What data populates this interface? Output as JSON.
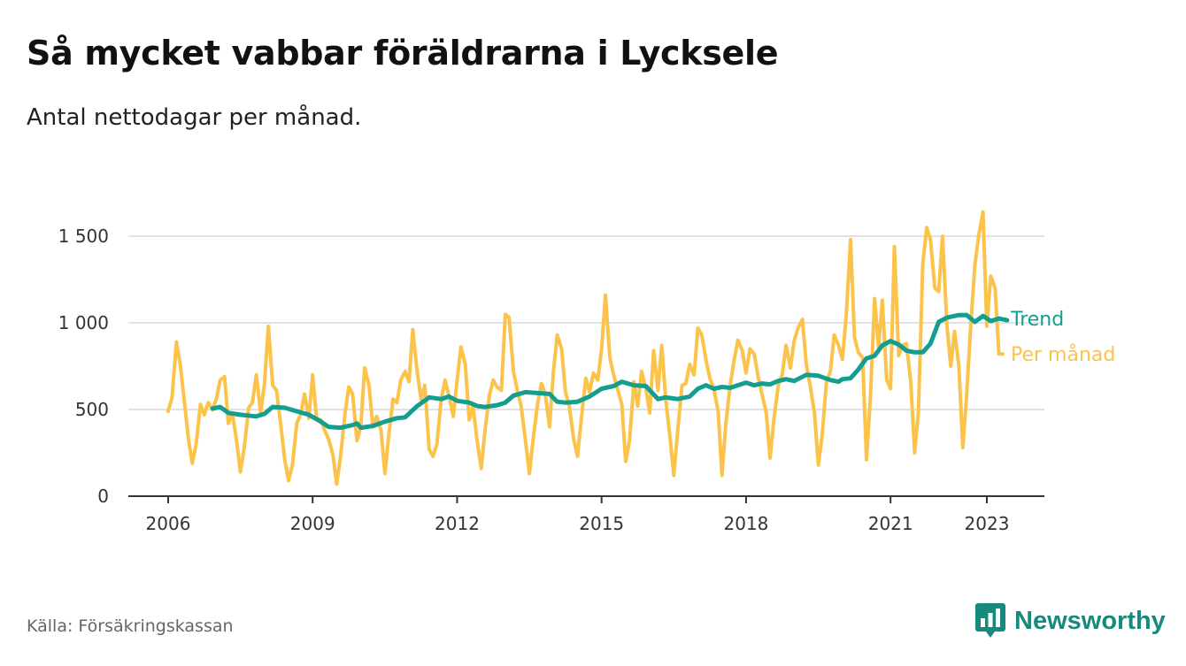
{
  "title": "Så mycket vabbar föräldrarna i Lycksele",
  "subtitle": "Antal nettodagar per månad.",
  "source": "Källa: Försäkringskassan",
  "brand": {
    "name": "Newsworthy",
    "icon": "chart-bubble-icon"
  },
  "colors": {
    "trend": "#159d8f",
    "monthly": "#fcc34b",
    "grid": "#d9d9d9",
    "axis": "#333333",
    "brand": "#17897d"
  },
  "chart_data": {
    "type": "line",
    "x_unit": "month (decimal year)",
    "ylim": [
      0,
      1500
    ],
    "xlim": [
      2005.2,
      2024.2
    ],
    "y_ticks": [
      {
        "value": 0,
        "label": "0"
      },
      {
        "value": 500,
        "label": "500"
      },
      {
        "value": 1000,
        "label": "1 000"
      },
      {
        "value": 1500,
        "label": "1 500"
      }
    ],
    "x_ticks": [
      {
        "value": 2006,
        "label": "2006"
      },
      {
        "value": 2009,
        "label": "2009"
      },
      {
        "value": 2012,
        "label": "2012"
      },
      {
        "value": 2015,
        "label": "2015"
      },
      {
        "value": 2018,
        "label": "2018"
      },
      {
        "value": 2021,
        "label": "2021"
      },
      {
        "value": 2023,
        "label": "2023"
      }
    ],
    "grid": true,
    "legend": "inline labels at line ends (right)",
    "series": [
      {
        "name": "Per månad",
        "color": "#fcc34b",
        "points": [
          [
            2006.0,
            490
          ],
          [
            2006.08,
            570
          ],
          [
            2006.17,
            890
          ],
          [
            2006.25,
            760
          ],
          [
            2006.33,
            560
          ],
          [
            2006.42,
            330
          ],
          [
            2006.5,
            190
          ],
          [
            2006.58,
            300
          ],
          [
            2006.67,
            530
          ],
          [
            2006.75,
            470
          ],
          [
            2006.83,
            540
          ],
          [
            2006.92,
            500
          ],
          [
            2007.0,
            560
          ],
          [
            2007.08,
            670
          ],
          [
            2007.17,
            690
          ],
          [
            2007.25,
            420
          ],
          [
            2007.33,
            480
          ],
          [
            2007.42,
            320
          ],
          [
            2007.5,
            140
          ],
          [
            2007.58,
            280
          ],
          [
            2007.67,
            510
          ],
          [
            2007.75,
            540
          ],
          [
            2007.83,
            700
          ],
          [
            2007.92,
            480
          ],
          [
            2008.0,
            650
          ],
          [
            2008.08,
            980
          ],
          [
            2008.17,
            640
          ],
          [
            2008.25,
            610
          ],
          [
            2008.33,
            430
          ],
          [
            2008.42,
            210
          ],
          [
            2008.5,
            90
          ],
          [
            2008.58,
            180
          ],
          [
            2008.67,
            420
          ],
          [
            2008.75,
            470
          ],
          [
            2008.83,
            590
          ],
          [
            2008.92,
            450
          ],
          [
            2009.0,
            700
          ],
          [
            2009.08,
            450
          ],
          [
            2009.17,
            440
          ],
          [
            2009.25,
            380
          ],
          [
            2009.33,
            330
          ],
          [
            2009.42,
            240
          ],
          [
            2009.5,
            70
          ],
          [
            2009.58,
            230
          ],
          [
            2009.67,
            470
          ],
          [
            2009.75,
            630
          ],
          [
            2009.83,
            590
          ],
          [
            2009.92,
            320
          ],
          [
            2010.0,
            400
          ],
          [
            2010.08,
            740
          ],
          [
            2010.17,
            640
          ],
          [
            2010.25,
            400
          ],
          [
            2010.33,
            460
          ],
          [
            2010.42,
            380
          ],
          [
            2010.5,
            130
          ],
          [
            2010.58,
            350
          ],
          [
            2010.67,
            560
          ],
          [
            2010.75,
            540
          ],
          [
            2010.83,
            670
          ],
          [
            2010.92,
            720
          ],
          [
            2011.0,
            660
          ],
          [
            2011.08,
            960
          ],
          [
            2011.17,
            720
          ],
          [
            2011.25,
            560
          ],
          [
            2011.33,
            640
          ],
          [
            2011.42,
            270
          ],
          [
            2011.5,
            230
          ],
          [
            2011.58,
            300
          ],
          [
            2011.67,
            560
          ],
          [
            2011.75,
            670
          ],
          [
            2011.83,
            580
          ],
          [
            2011.92,
            460
          ],
          [
            2012.0,
            670
          ],
          [
            2012.08,
            860
          ],
          [
            2012.17,
            760
          ],
          [
            2012.25,
            440
          ],
          [
            2012.33,
            520
          ],
          [
            2012.42,
            310
          ],
          [
            2012.5,
            160
          ],
          [
            2012.58,
            380
          ],
          [
            2012.67,
            580
          ],
          [
            2012.75,
            670
          ],
          [
            2012.83,
            630
          ],
          [
            2012.92,
            610
          ],
          [
            2013.0,
            1050
          ],
          [
            2013.08,
            1030
          ],
          [
            2013.17,
            720
          ],
          [
            2013.25,
            610
          ],
          [
            2013.33,
            520
          ],
          [
            2013.42,
            320
          ],
          [
            2013.5,
            130
          ],
          [
            2013.58,
            330
          ],
          [
            2013.67,
            530
          ],
          [
            2013.75,
            650
          ],
          [
            2013.83,
            590
          ],
          [
            2013.92,
            400
          ],
          [
            2014.0,
            720
          ],
          [
            2014.08,
            930
          ],
          [
            2014.17,
            850
          ],
          [
            2014.25,
            600
          ],
          [
            2014.33,
            520
          ],
          [
            2014.42,
            330
          ],
          [
            2014.5,
            230
          ],
          [
            2014.58,
            450
          ],
          [
            2014.67,
            680
          ],
          [
            2014.75,
            600
          ],
          [
            2014.83,
            710
          ],
          [
            2014.92,
            670
          ],
          [
            2015.0,
            850
          ],
          [
            2015.08,
            1160
          ],
          [
            2015.17,
            800
          ],
          [
            2015.25,
            700
          ],
          [
            2015.33,
            620
          ],
          [
            2015.42,
            530
          ],
          [
            2015.5,
            200
          ],
          [
            2015.58,
            320
          ],
          [
            2015.67,
            660
          ],
          [
            2015.75,
            520
          ],
          [
            2015.83,
            720
          ],
          [
            2015.92,
            620
          ],
          [
            2016.0,
            480
          ],
          [
            2016.08,
            840
          ],
          [
            2016.17,
            610
          ],
          [
            2016.25,
            870
          ],
          [
            2016.33,
            560
          ],
          [
            2016.42,
            340
          ],
          [
            2016.5,
            120
          ],
          [
            2016.58,
            380
          ],
          [
            2016.67,
            640
          ],
          [
            2016.75,
            650
          ],
          [
            2016.83,
            760
          ],
          [
            2016.92,
            700
          ],
          [
            2017.0,
            970
          ],
          [
            2017.08,
            930
          ],
          [
            2017.17,
            780
          ],
          [
            2017.25,
            680
          ],
          [
            2017.33,
            620
          ],
          [
            2017.42,
            490
          ],
          [
            2017.5,
            120
          ],
          [
            2017.58,
            420
          ],
          [
            2017.67,
            640
          ],
          [
            2017.75,
            780
          ],
          [
            2017.83,
            900
          ],
          [
            2017.92,
            840
          ],
          [
            2018.0,
            710
          ],
          [
            2018.08,
            850
          ],
          [
            2018.17,
            820
          ],
          [
            2018.25,
            690
          ],
          [
            2018.33,
            590
          ],
          [
            2018.42,
            480
          ],
          [
            2018.5,
            220
          ],
          [
            2018.58,
            450
          ],
          [
            2018.67,
            640
          ],
          [
            2018.75,
            700
          ],
          [
            2018.83,
            870
          ],
          [
            2018.92,
            740
          ],
          [
            2019.0,
            900
          ],
          [
            2019.08,
            970
          ],
          [
            2019.17,
            1020
          ],
          [
            2019.25,
            760
          ],
          [
            2019.33,
            640
          ],
          [
            2019.42,
            480
          ],
          [
            2019.5,
            180
          ],
          [
            2019.58,
            350
          ],
          [
            2019.67,
            660
          ],
          [
            2019.75,
            720
          ],
          [
            2019.83,
            930
          ],
          [
            2019.92,
            870
          ],
          [
            2020.0,
            790
          ],
          [
            2020.08,
            1040
          ],
          [
            2020.17,
            1480
          ],
          [
            2020.25,
            920
          ],
          [
            2020.33,
            830
          ],
          [
            2020.42,
            800
          ],
          [
            2020.5,
            210
          ],
          [
            2020.58,
            560
          ],
          [
            2020.67,
            1140
          ],
          [
            2020.75,
            860
          ],
          [
            2020.83,
            1130
          ],
          [
            2020.92,
            670
          ],
          [
            2021.0,
            620
          ],
          [
            2021.08,
            1440
          ],
          [
            2021.17,
            810
          ],
          [
            2021.25,
            870
          ],
          [
            2021.33,
            880
          ],
          [
            2021.42,
            660
          ],
          [
            2021.5,
            250
          ],
          [
            2021.58,
            490
          ],
          [
            2021.67,
            1340
          ],
          [
            2021.75,
            1550
          ],
          [
            2021.83,
            1480
          ],
          [
            2021.92,
            1200
          ],
          [
            2022.0,
            1180
          ],
          [
            2022.08,
            1500
          ],
          [
            2022.17,
            990
          ],
          [
            2022.25,
            750
          ],
          [
            2022.33,
            950
          ],
          [
            2022.42,
            750
          ],
          [
            2022.5,
            280
          ],
          [
            2022.58,
            580
          ],
          [
            2022.67,
            1000
          ],
          [
            2022.75,
            1330
          ],
          [
            2022.83,
            1500
          ],
          [
            2022.92,
            1640
          ],
          [
            2023.0,
            980
          ],
          [
            2023.08,
            1270
          ],
          [
            2023.17,
            1200
          ],
          [
            2023.25,
            820
          ],
          [
            2023.33,
            820
          ]
        ]
      },
      {
        "name": "Trend",
        "color": "#159d8f",
        "points": [
          [
            2006.92,
            505
          ],
          [
            2007.08,
            515
          ],
          [
            2007.25,
            480
          ],
          [
            2007.5,
            470
          ],
          [
            2007.83,
            460
          ],
          [
            2008.0,
            475
          ],
          [
            2008.17,
            515
          ],
          [
            2008.42,
            510
          ],
          [
            2008.67,
            490
          ],
          [
            2008.92,
            470
          ],
          [
            2009.17,
            430
          ],
          [
            2009.33,
            400
          ],
          [
            2009.58,
            395
          ],
          [
            2009.83,
            410
          ],
          [
            2009.92,
            420
          ],
          [
            2010.0,
            395
          ],
          [
            2010.25,
            405
          ],
          [
            2010.5,
            430
          ],
          [
            2010.75,
            450
          ],
          [
            2010.92,
            455
          ],
          [
            2011.17,
            520
          ],
          [
            2011.42,
            570
          ],
          [
            2011.67,
            560
          ],
          [
            2011.83,
            575
          ],
          [
            2012.0,
            550
          ],
          [
            2012.25,
            540
          ],
          [
            2012.42,
            520
          ],
          [
            2012.58,
            515
          ],
          [
            2012.83,
            525
          ],
          [
            2013.0,
            540
          ],
          [
            2013.17,
            580
          ],
          [
            2013.42,
            600
          ],
          [
            2013.67,
            595
          ],
          [
            2013.92,
            590
          ],
          [
            2014.08,
            545
          ],
          [
            2014.25,
            540
          ],
          [
            2014.5,
            545
          ],
          [
            2014.75,
            575
          ],
          [
            2015.0,
            620
          ],
          [
            2015.25,
            635
          ],
          [
            2015.42,
            660
          ],
          [
            2015.67,
            640
          ],
          [
            2015.92,
            635
          ],
          [
            2016.17,
            560
          ],
          [
            2016.33,
            570
          ],
          [
            2016.58,
            560
          ],
          [
            2016.83,
            575
          ],
          [
            2017.0,
            620
          ],
          [
            2017.17,
            640
          ],
          [
            2017.33,
            620
          ],
          [
            2017.5,
            630
          ],
          [
            2017.67,
            625
          ],
          [
            2017.83,
            640
          ],
          [
            2018.0,
            655
          ],
          [
            2018.17,
            640
          ],
          [
            2018.33,
            650
          ],
          [
            2018.5,
            645
          ],
          [
            2018.67,
            665
          ],
          [
            2018.83,
            675
          ],
          [
            2019.0,
            665
          ],
          [
            2019.25,
            700
          ],
          [
            2019.5,
            695
          ],
          [
            2019.75,
            670
          ],
          [
            2019.92,
            660
          ],
          [
            2020.0,
            675
          ],
          [
            2020.17,
            680
          ],
          [
            2020.33,
            730
          ],
          [
            2020.5,
            795
          ],
          [
            2020.67,
            810
          ],
          [
            2020.83,
            870
          ],
          [
            2021.0,
            895
          ],
          [
            2021.08,
            885
          ],
          [
            2021.17,
            875
          ],
          [
            2021.33,
            840
          ],
          [
            2021.5,
            830
          ],
          [
            2021.67,
            830
          ],
          [
            2021.83,
            880
          ],
          [
            2022.0,
            1005
          ],
          [
            2022.17,
            1030
          ],
          [
            2022.42,
            1045
          ],
          [
            2022.58,
            1045
          ],
          [
            2022.75,
            1005
          ],
          [
            2022.92,
            1040
          ],
          [
            2023.08,
            1010
          ],
          [
            2023.25,
            1025
          ],
          [
            2023.42,
            1015
          ]
        ]
      }
    ]
  }
}
